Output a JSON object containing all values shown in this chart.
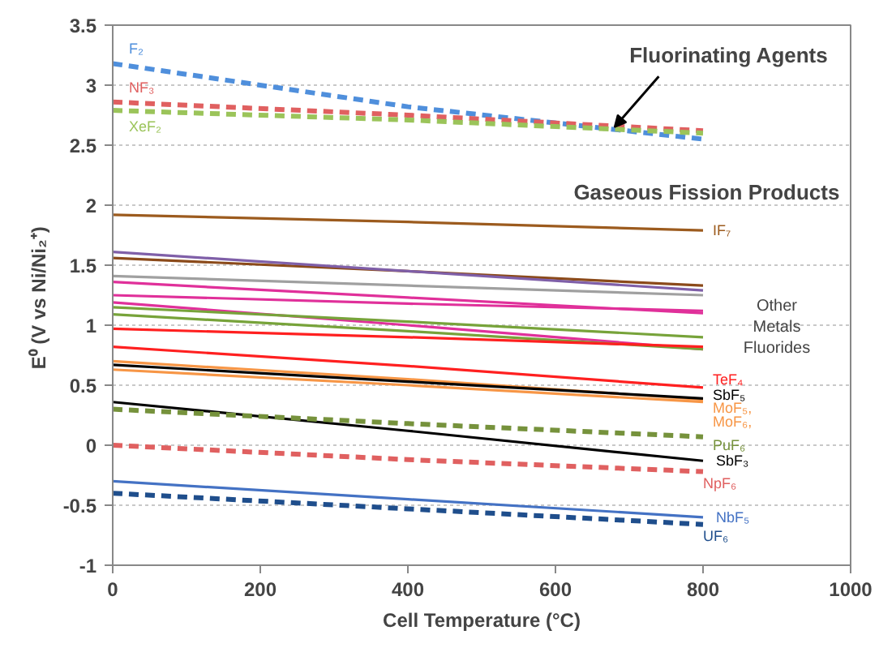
{
  "chart_data": {
    "type": "line",
    "xlabel": "Cell Temperature (°C)",
    "ylabel": "E⁰ (V vs  Ni/Ni₂⁺)",
    "x": [
      0,
      400,
      800
    ],
    "xlim": [
      0,
      1000
    ],
    "xticks": [
      0,
      200,
      400,
      600,
      800,
      1000
    ],
    "ylim": [
      -1,
      3.5
    ],
    "yticks": [
      -1,
      -0.5,
      0,
      0.5,
      1,
      1.5,
      2,
      2.5,
      3,
      3.5
    ],
    "grid": "y",
    "series": [
      {
        "name": "F₂",
        "color": "#4f8fdc",
        "line_style": "dashed",
        "values": [
          3.18,
          2.82,
          2.55
        ]
      },
      {
        "name": "NF₃",
        "color": "#e06060",
        "line_style": "dashed",
        "values": [
          2.86,
          2.75,
          2.62
        ]
      },
      {
        "name": "XeF₂",
        "color": "#9bc45a",
        "line_style": "dashed",
        "values": [
          2.79,
          2.71,
          2.6
        ]
      },
      {
        "name": "IF₇",
        "color": "#9c5b1e",
        "values": [
          1.92,
          1.86,
          1.79
        ]
      },
      {
        "color": "#8b4a1a",
        "values": [
          1.56,
          1.45,
          1.33
        ]
      },
      {
        "color": "#7f5fa8",
        "values": [
          1.61,
          1.45,
          1.29
        ]
      },
      {
        "color": "#a0a0a0",
        "values": [
          1.41,
          1.33,
          1.25
        ]
      },
      {
        "color": "#e0309a",
        "values": [
          1.36,
          1.23,
          1.1
        ]
      },
      {
        "color": "#e0309a",
        "values": [
          1.25,
          1.18,
          1.12
        ]
      },
      {
        "color": "#e0309a",
        "values": [
          1.19,
          1.0,
          0.8
        ]
      },
      {
        "color": "#77a33a",
        "values": [
          1.15,
          1.03,
          0.9
        ]
      },
      {
        "color": "#77a33a",
        "values": [
          1.09,
          0.95,
          0.8
        ]
      },
      {
        "color": "#ff2020",
        "values": [
          0.97,
          0.9,
          0.82
        ]
      },
      {
        "name": "TeF₄",
        "color": "#ff2020",
        "values": [
          0.82,
          0.66,
          0.48
        ]
      },
      {
        "name": "MoF₅,",
        "color": "#f79646",
        "values": [
          0.7,
          0.55,
          0.38
        ]
      },
      {
        "name": "MoF₆,",
        "color": "#f79646",
        "values": [
          0.63,
          0.5,
          0.36
        ]
      },
      {
        "name": "SbF₅",
        "color": "#000000",
        "values": [
          0.67,
          0.53,
          0.39
        ]
      },
      {
        "name": "SbF₃",
        "color": "#000000",
        "values": [
          0.36,
          0.12,
          -0.13
        ]
      },
      {
        "name": "PuF₆",
        "color": "#76923c",
        "line_style": "dashed",
        "values": [
          0.3,
          0.18,
          0.07
        ]
      },
      {
        "name": "NpF₆",
        "color": "#e06060",
        "line_style": "dashed",
        "values": [
          0.0,
          -0.12,
          -0.22
        ]
      },
      {
        "name": "NbF₅",
        "color": "#4472c4",
        "values": [
          -0.3,
          -0.45,
          -0.6
        ]
      },
      {
        "name": "UF₆",
        "color": "#1f4e8c",
        "line_style": "dashed",
        "values": [
          -0.4,
          -0.53,
          -0.66
        ]
      }
    ],
    "annotations": [
      {
        "text": "Fluorinating Agents",
        "x": 680,
        "y": 2.65
      },
      "Gaseous Fission Products",
      "Other Metals Fluorides"
    ]
  }
}
